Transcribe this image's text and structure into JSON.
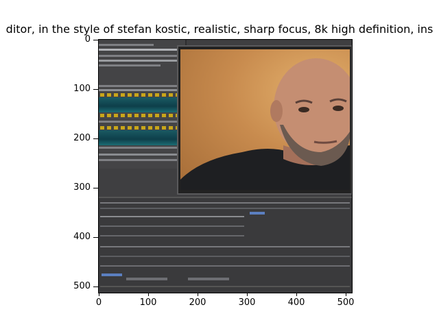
{
  "figure": {
    "title": "ditor,  in the style of stefan kostic, realistic, sharp focus, 8k high definition, ins",
    "y_ticks": [
      "0",
      "100",
      "200",
      "300",
      "400",
      "500"
    ],
    "x_ticks": [
      "0",
      "100",
      "200",
      "300",
      "400",
      "500"
    ]
  },
  "image": {
    "description_icon": "generated-image-icon"
  }
}
